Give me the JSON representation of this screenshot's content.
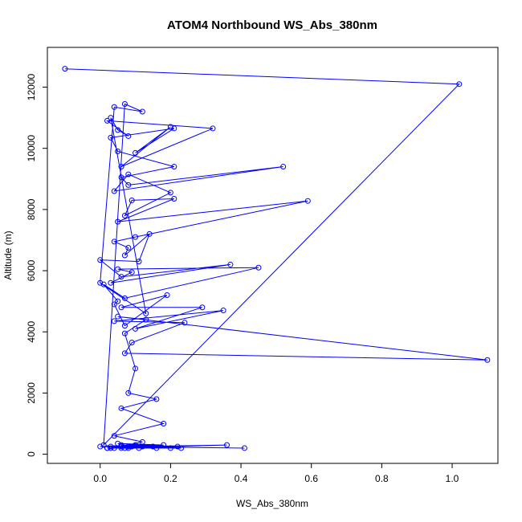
{
  "chart_data": {
    "type": "line",
    "title": "ATOM4 Northbound WS_Abs_380nm",
    "xlabel": "WS_Abs_380nm",
    "ylabel": "Altitude (m)",
    "xlim": [
      -0.15,
      1.13
    ],
    "ylim": [
      -300,
      13300
    ],
    "x_ticks": [
      0.0,
      0.2,
      0.4,
      0.6,
      0.8,
      1.0
    ],
    "x_tick_labels": [
      "0.0",
      "0.2",
      "0.4",
      "0.6",
      "0.8",
      "1.0"
    ],
    "y_ticks": [
      0,
      2000,
      4000,
      6000,
      8000,
      10000,
      12000
    ],
    "y_tick_labels": [
      "0",
      "2000",
      "4000",
      "6000",
      "8000",
      "10000",
      "12000"
    ],
    "grid": false,
    "legend": "none",
    "series_color": "#0000ff",
    "series": [
      {
        "x": [
          -0.1,
          1.02,
          0.01,
          0.07,
          0.12,
          0.04,
          0.0,
          0.13,
          0.03,
          0.05,
          0.08,
          0.02,
          0.32,
          0.06,
          0.2,
          0.1,
          0.21,
          0.03,
          0.05,
          0.21,
          0.06,
          0.08,
          0.52,
          0.04,
          0.08,
          0.2,
          0.07,
          0.09,
          0.21,
          0.05,
          0.59,
          0.1,
          0.04,
          0.08,
          0.07,
          0.14,
          0.11,
          0.0,
          0.06,
          0.37,
          0.03,
          0.09,
          0.05,
          0.45,
          0.07,
          0.01,
          0.05,
          0.04,
          0.07,
          0.19,
          0.06,
          0.29,
          0.1,
          0.35,
          0.04,
          0.24,
          0.09,
          0.07,
          1.1,
          0.05,
          0.13,
          0.07,
          0.1,
          0.08,
          0.16,
          0.06,
          0.18,
          0.04,
          0.12,
          0.04,
          0.36,
          0.09,
          0.41,
          0.06,
          0.18,
          0.05,
          0.22,
          0.1,
          0.0,
          0.23,
          0.06,
          0.02,
          0.2,
          0.08,
          0.08,
          0.03,
          0.11,
          0.06,
          0.15,
          0.03,
          0.16,
          0.07,
          0.08,
          0.02,
          0.12
        ],
        "y": [
          12600,
          12100,
          300,
          11450,
          11200,
          11350,
          5600,
          4600,
          11000,
          10600,
          10400,
          10900,
          10650,
          9400,
          10700,
          9850,
          10650,
          10350,
          9900,
          9400,
          9050,
          8800,
          9400,
          8600,
          9150,
          8550,
          7800,
          8300,
          8350,
          7600,
          8280,
          7100,
          6950,
          6750,
          6500,
          7200,
          6300,
          6350,
          5800,
          6200,
          5600,
          5950,
          6050,
          6100,
          5100,
          5550,
          5000,
          4900,
          4200,
          5200,
          4800,
          4800,
          4100,
          4700,
          4350,
          4300,
          3650,
          3300,
          3080,
          4500,
          4400,
          3950,
          2800,
          2000,
          1800,
          1500,
          1000,
          600,
          400,
          200,
          300,
          250,
          200,
          250,
          300,
          350,
          250,
          300,
          250,
          200,
          200,
          200,
          200,
          200,
          250,
          200,
          200,
          300,
          250,
          250,
          200,
          200,
          250,
          200,
          250
        ]
      }
    ]
  }
}
